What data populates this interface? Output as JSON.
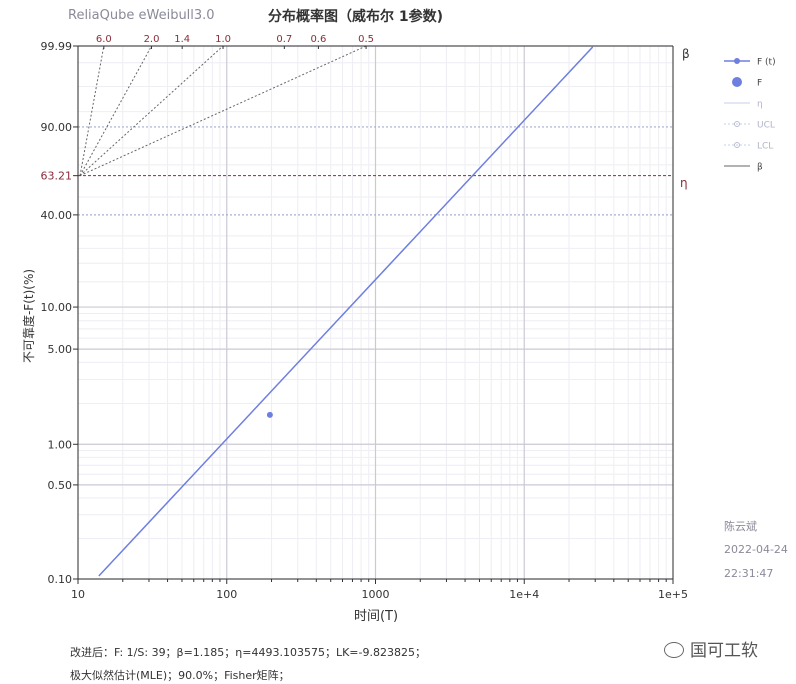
{
  "app": {
    "title": "ReliaQube eWeibull3.0"
  },
  "chart_data": {
    "type": "line",
    "title": "分布概率图（威布尔 1参数)",
    "xlabel": "时间(T)",
    "ylabel": "不可靠度-F(t)(%)",
    "x_scale": "log",
    "y_scale": "weibull",
    "xlim": [
      10,
      100000
    ],
    "ylim": [
      0.1,
      99.99
    ],
    "x_ticks": [
      {
        "value": 10,
        "label": "10"
      },
      {
        "value": 100,
        "label": "100"
      },
      {
        "value": 1000,
        "label": "1000"
      },
      {
        "value": 10000,
        "label": "1e+4"
      },
      {
        "value": 100000,
        "label": "1e+5"
      }
    ],
    "y_ticks": [
      {
        "value": 99.99,
        "label": "99.99"
      },
      {
        "value": 90,
        "label": "90.00"
      },
      {
        "value": 63.21,
        "label": "63.21"
      },
      {
        "value": 40,
        "label": "40.00"
      },
      {
        "value": 10,
        "label": "10.00"
      },
      {
        "value": 5,
        "label": "5.00"
      },
      {
        "value": 1,
        "label": "1.00"
      },
      {
        "value": 0.5,
        "label": "0.50"
      },
      {
        "value": 0.1,
        "label": "0.10"
      }
    ],
    "grid": true,
    "series": [
      {
        "name": "F (t)",
        "kind": "fit-line",
        "color": "#6f7fe0",
        "beta": 1.185,
        "eta": 4493.103575,
        "x": [
          13.2,
          100,
          1000,
          10000,
          29500
        ],
        "y": [
          0.1,
          1.07,
          15.5,
          92.0,
          99.99
        ]
      },
      {
        "name": "F",
        "kind": "points",
        "color": "#6f7fe0",
        "x": [
          195
        ],
        "y": [
          1.65
        ]
      }
    ],
    "beta_scale": {
      "ticks": [
        6.0,
        2.0,
        1.4,
        1.0,
        0.7,
        0.6,
        0.5
      ],
      "labels": [
        "6.0",
        "2.0",
        "1.4",
        "1.0",
        "0.7",
        "0.6",
        "0.5"
      ],
      "dashed_rays_to": [
        6.0,
        2.0,
        1.0,
        0.5
      ],
      "right_label": "β"
    },
    "eta_line": {
      "y": 63.21,
      "label": "η",
      "color": "#8b2d3a"
    },
    "legend": {
      "placement": "right",
      "items": [
        "F (t)",
        "F",
        "η",
        "UCL",
        "LCL",
        "β"
      ]
    }
  },
  "annotations": {
    "author": "陈云斌",
    "date": "2022-04-24",
    "time": "22:31:47"
  },
  "footer": {
    "line1": "改进后：F: 1/S: 39；β=1.185；η=4493.103575；LK=-9.823825；",
    "line2": "极大似然估计(MLE)；90.0%；Fisher矩阵；"
  },
  "watermark": {
    "text": "国可工软"
  },
  "colors": {
    "grid_major": "#c9cad6",
    "grid_minor": "#eeeef4",
    "axis": "#333333",
    "fit_line": "#6f7fe0",
    "eta_line": "#8b2d3a",
    "beta_label": "#8b2d3a"
  }
}
